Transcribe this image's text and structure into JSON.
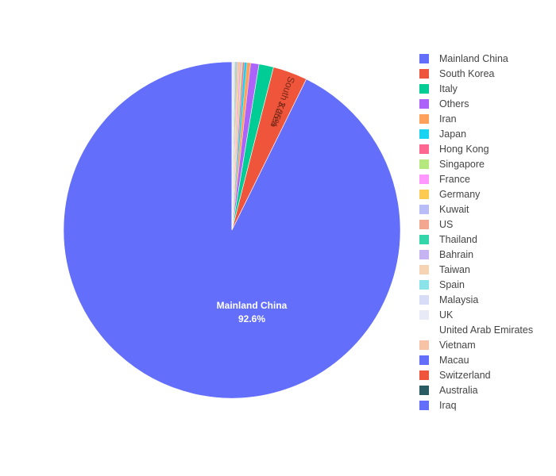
{
  "chart_data": {
    "type": "pie",
    "title": "",
    "legend_position": "right",
    "direction": "clockwise",
    "start_angle": "top",
    "slices": [
      {
        "label": "Mainland China",
        "percent": 92.6,
        "color": "#636efa",
        "text_label": "Mainland China",
        "text_value": "92.6%"
      },
      {
        "label": "South Korea",
        "percent": 3.3,
        "color": "#ef553b",
        "text_label": "South Korea",
        "text_value": "3.25%"
      },
      {
        "label": "Italy",
        "percent": 1.4,
        "color": "#00cc96"
      },
      {
        "label": "Others",
        "percent": 0.8,
        "color": "#ab63fa"
      },
      {
        "label": "Iran",
        "percent": 0.35,
        "color": "#ffa15a"
      },
      {
        "label": "Japan",
        "percent": 0.25,
        "color": "#19d3f3"
      },
      {
        "label": "Hong Kong",
        "percent": 0.15,
        "color": "#ff6692"
      },
      {
        "label": "Singapore",
        "percent": 0.15,
        "color": "#b6e880"
      },
      {
        "label": "France",
        "percent": 0.15,
        "color": "#ff97ff"
      },
      {
        "label": "Germany",
        "percent": 0.13,
        "color": "#fecb52"
      },
      {
        "label": "Kuwait",
        "percent": 0.08,
        "color": "#b8bdf8"
      },
      {
        "label": "US",
        "percent": 0.1,
        "color": "#f3a78f"
      },
      {
        "label": "Thailand",
        "percent": 0.07,
        "color": "#33d6a8"
      },
      {
        "label": "Bahrain",
        "percent": 0.06,
        "color": "#c5b3f2"
      },
      {
        "label": "Taiwan",
        "percent": 0.06,
        "color": "#f6d3b2"
      },
      {
        "label": "Spain",
        "percent": 0.06,
        "color": "#8be3ea"
      },
      {
        "label": "Malaysia",
        "percent": 0.04,
        "color": "#d9dcf6"
      },
      {
        "label": "UK",
        "percent": 0.03,
        "color": "#e8eaf8"
      },
      {
        "label": "United Arab Emirates",
        "percent": 0.03,
        "color": "#ffffff"
      },
      {
        "label": "Vietnam",
        "percent": 0.02,
        "color": "#f7c2a6"
      },
      {
        "label": "Macau",
        "percent": 0.01,
        "color": "#636efa"
      },
      {
        "label": "Switzerland",
        "percent": 0.01,
        "color": "#ef553b"
      },
      {
        "label": "Australia",
        "percent": 0.01,
        "color": "#2a5c64"
      },
      {
        "label": "Iraq",
        "percent": 0.01,
        "color": "#636efa"
      }
    ]
  }
}
